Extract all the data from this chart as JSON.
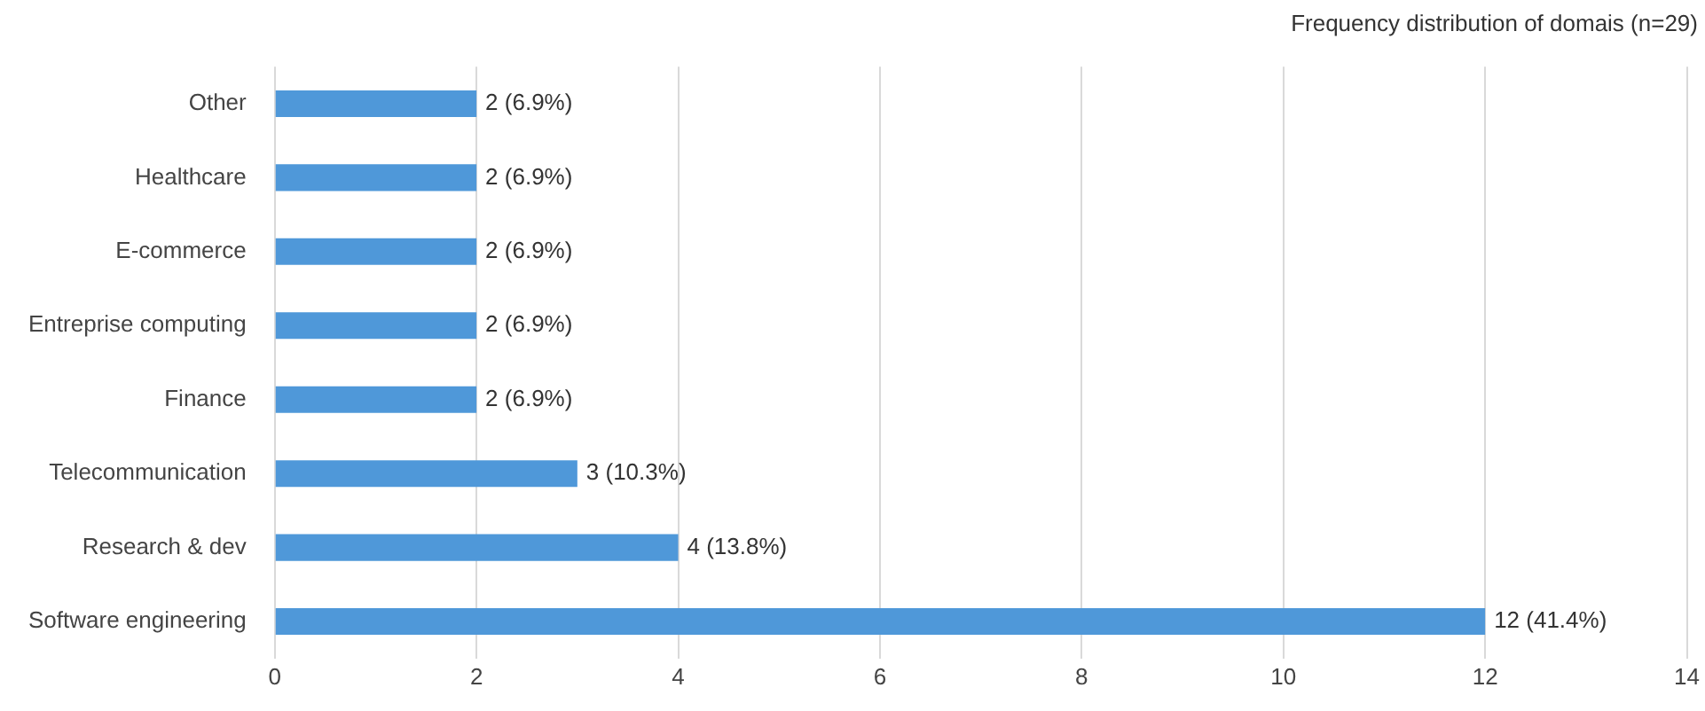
{
  "chart_data": {
    "type": "bar",
    "orientation": "horizontal",
    "title": "Frequency distribution of domais (n=29)",
    "categories": [
      "Other",
      "Healthcare",
      "E-commerce",
      "Entreprise computing",
      "Finance",
      "Telecommunication",
      "Research & dev",
      "Software engineering"
    ],
    "values": [
      2,
      2,
      2,
      2,
      2,
      3,
      4,
      12
    ],
    "value_labels": [
      "2 (6.9%)",
      "2 (6.9%)",
      "2 (6.9%)",
      "2 (6.9%)",
      "2 (6.9%)",
      "3 (10.3%)",
      "4 (13.8%)",
      "12 (41.4%)"
    ],
    "color": "#4f98d9",
    "xlim": [
      0,
      14
    ],
    "xticks": [
      0,
      2,
      4,
      6,
      8,
      10,
      12,
      14
    ],
    "grid": "x",
    "legend": false
  }
}
